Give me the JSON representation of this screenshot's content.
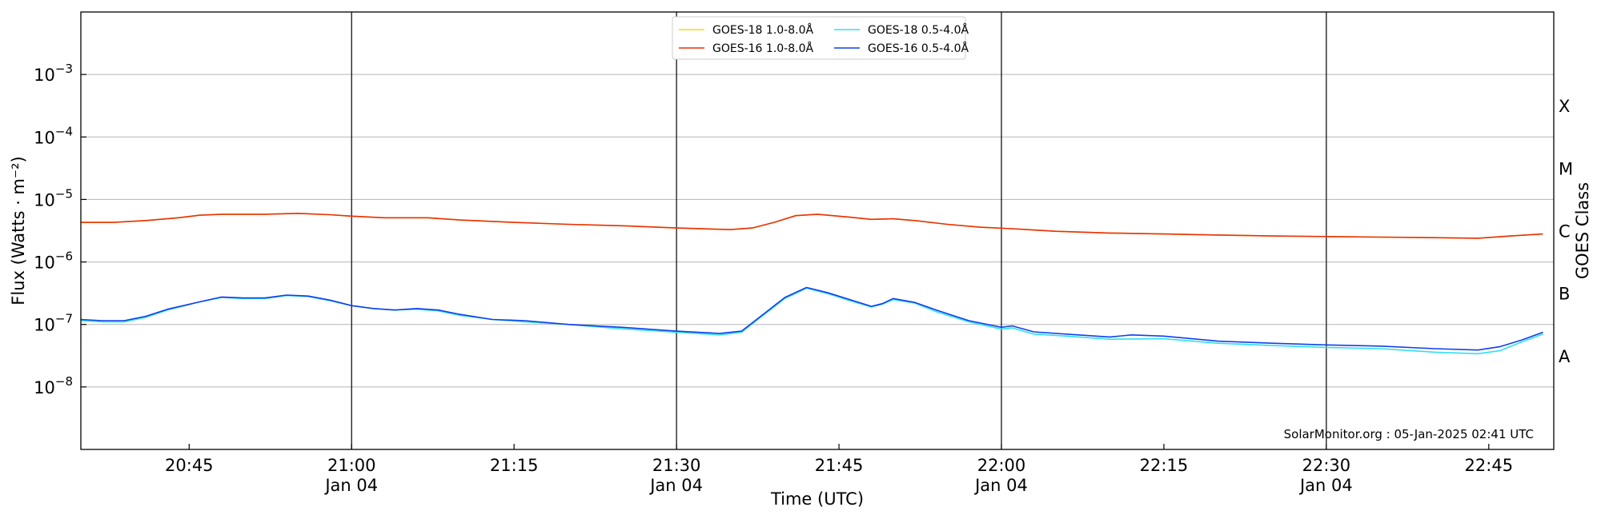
{
  "chart_data": {
    "type": "line",
    "title": "",
    "xlabel": "Time (UTC)",
    "ylabel": "Flux (Watts · m⁻²)",
    "y2label": "GOES Class",
    "yscale": "log",
    "ylim": [
      1e-09,
      0.01
    ],
    "xlim": [
      "2025-01-04 20:35",
      "2025-01-04 22:51"
    ],
    "grid": "horizontal at decades 1e-8 to 1e-3",
    "legend_position": "top-center",
    "credit": "SolarMonitor.org : 05-Jan-2025 02:41 UTC",
    "x_ticks": [
      {
        "time": "2025-01-04 20:45",
        "label": "20:45",
        "sublabel": ""
      },
      {
        "time": "2025-01-04 21:00",
        "label": "21:00",
        "sublabel": "Jan 04"
      },
      {
        "time": "2025-01-04 21:15",
        "label": "21:15",
        "sublabel": ""
      },
      {
        "time": "2025-01-04 21:30",
        "label": "21:30",
        "sublabel": "Jan 04"
      },
      {
        "time": "2025-01-04 21:45",
        "label": "21:45",
        "sublabel": ""
      },
      {
        "time": "2025-01-04 22:00",
        "label": "22:00",
        "sublabel": "Jan 04"
      },
      {
        "time": "2025-01-04 22:15",
        "label": "22:15",
        "sublabel": ""
      },
      {
        "time": "2025-01-04 22:30",
        "label": "22:30",
        "sublabel": "Jan 04"
      },
      {
        "time": "2025-01-04 22:45",
        "label": "22:45",
        "sublabel": ""
      }
    ],
    "vertical_lines": [
      "2025-01-04 21:00",
      "2025-01-04 21:30",
      "2025-01-04 22:00",
      "2025-01-04 22:30"
    ],
    "y_ticks": [
      {
        "value": 1e-08,
        "base": "10",
        "exp": "−8"
      },
      {
        "value": 1e-07,
        "base": "10",
        "exp": "−7"
      },
      {
        "value": 1e-06,
        "base": "10",
        "exp": "−6"
      },
      {
        "value": 1e-05,
        "base": "10",
        "exp": "−5"
      },
      {
        "value": 0.0001,
        "base": "10",
        "exp": "−4"
      },
      {
        "value": 0.001,
        "base": "10",
        "exp": "−3"
      }
    ],
    "goes_classes": [
      {
        "label": "A",
        "value": 3.16e-08
      },
      {
        "label": "B",
        "value": 3.16e-07
      },
      {
        "label": "C",
        "value": 3.16e-06
      },
      {
        "label": "M",
        "value": 3.16e-05
      },
      {
        "label": "X",
        "value": 0.000316
      }
    ],
    "legend": [
      {
        "label": "GOES-18 1.0-8.0Å",
        "color": "#FFD700"
      },
      {
        "label": "GOES-16 1.0-8.0Å",
        "color": "#E8300C"
      },
      {
        "label": "GOES-18 0.5-4.0Å",
        "color": "#2FE0F0"
      },
      {
        "label": "GOES-16 0.5-4.0Å",
        "color": "#0F3FF0"
      }
    ],
    "series": [
      {
        "name": "GOES-18 1.0-8.0Å",
        "color": "#FFD700",
        "points": [
          [
            "2025-01-04 20:35",
            4.3e-06
          ],
          [
            "2025-01-04 20:38",
            4.3e-06
          ],
          [
            "2025-01-04 20:41",
            4.6e-06
          ],
          [
            "2025-01-04 20:44",
            5.1e-06
          ],
          [
            "2025-01-04 20:46",
            5.6e-06
          ],
          [
            "2025-01-04 20:48",
            5.8e-06
          ],
          [
            "2025-01-04 20:52",
            5.8e-06
          ],
          [
            "2025-01-04 20:55",
            6e-06
          ],
          [
            "2025-01-04 20:58",
            5.7e-06
          ],
          [
            "2025-01-04 21:00",
            5.4e-06
          ],
          [
            "2025-01-04 21:03",
            5.1e-06
          ],
          [
            "2025-01-04 21:07",
            5.1e-06
          ],
          [
            "2025-01-04 21:10",
            4.7e-06
          ],
          [
            "2025-01-04 21:15",
            4.3e-06
          ],
          [
            "2025-01-04 21:20",
            4e-06
          ],
          [
            "2025-01-04 21:25",
            3.8e-06
          ],
          [
            "2025-01-04 21:30",
            3.5e-06
          ],
          [
            "2025-01-04 21:35",
            3.3e-06
          ],
          [
            "2025-01-04 21:37",
            3.5e-06
          ],
          [
            "2025-01-04 21:39",
            4.3e-06
          ],
          [
            "2025-01-04 21:41",
            5.5e-06
          ],
          [
            "2025-01-04 21:43",
            5.8e-06
          ],
          [
            "2025-01-04 21:46",
            5.2e-06
          ],
          [
            "2025-01-04 21:48",
            4.8e-06
          ],
          [
            "2025-01-04 21:50",
            4.9e-06
          ],
          [
            "2025-01-04 21:52",
            4.6e-06
          ],
          [
            "2025-01-04 21:55",
            4e-06
          ],
          [
            "2025-01-04 21:58",
            3.6e-06
          ],
          [
            "2025-01-04 22:01",
            3.4e-06
          ],
          [
            "2025-01-04 22:05",
            3.1e-06
          ],
          [
            "2025-01-04 22:10",
            2.9e-06
          ],
          [
            "2025-01-04 22:15",
            2.8e-06
          ],
          [
            "2025-01-04 22:20",
            2.7e-06
          ],
          [
            "2025-01-04 22:25",
            2.6e-06
          ],
          [
            "2025-01-04 22:30",
            2.55e-06
          ],
          [
            "2025-01-04 22:35",
            2.5e-06
          ],
          [
            "2025-01-04 22:40",
            2.45e-06
          ],
          [
            "2025-01-04 22:44",
            2.4e-06
          ],
          [
            "2025-01-04 22:47",
            2.6e-06
          ],
          [
            "2025-01-04 22:50",
            2.8e-06
          ]
        ]
      },
      {
        "name": "GOES-16 1.0-8.0Å",
        "color": "#E8300C",
        "points": [
          [
            "2025-01-04 20:35",
            4.3e-06
          ],
          [
            "2025-01-04 20:38",
            4.3e-06
          ],
          [
            "2025-01-04 20:41",
            4.6e-06
          ],
          [
            "2025-01-04 20:44",
            5.1e-06
          ],
          [
            "2025-01-04 20:46",
            5.6e-06
          ],
          [
            "2025-01-04 20:48",
            5.8e-06
          ],
          [
            "2025-01-04 20:52",
            5.8e-06
          ],
          [
            "2025-01-04 20:55",
            6e-06
          ],
          [
            "2025-01-04 20:58",
            5.7e-06
          ],
          [
            "2025-01-04 21:00",
            5.4e-06
          ],
          [
            "2025-01-04 21:03",
            5.1e-06
          ],
          [
            "2025-01-04 21:07",
            5.1e-06
          ],
          [
            "2025-01-04 21:10",
            4.7e-06
          ],
          [
            "2025-01-04 21:15",
            4.3e-06
          ],
          [
            "2025-01-04 21:20",
            4e-06
          ],
          [
            "2025-01-04 21:25",
            3.8e-06
          ],
          [
            "2025-01-04 21:30",
            3.5e-06
          ],
          [
            "2025-01-04 21:35",
            3.3e-06
          ],
          [
            "2025-01-04 21:37",
            3.5e-06
          ],
          [
            "2025-01-04 21:39",
            4.3e-06
          ],
          [
            "2025-01-04 21:41",
            5.5e-06
          ],
          [
            "2025-01-04 21:43",
            5.8e-06
          ],
          [
            "2025-01-04 21:46",
            5.2e-06
          ],
          [
            "2025-01-04 21:48",
            4.8e-06
          ],
          [
            "2025-01-04 21:50",
            4.9e-06
          ],
          [
            "2025-01-04 21:52",
            4.6e-06
          ],
          [
            "2025-01-04 21:55",
            4e-06
          ],
          [
            "2025-01-04 21:58",
            3.6e-06
          ],
          [
            "2025-01-04 22:01",
            3.4e-06
          ],
          [
            "2025-01-04 22:05",
            3.1e-06
          ],
          [
            "2025-01-04 22:10",
            2.9e-06
          ],
          [
            "2025-01-04 22:15",
            2.8e-06
          ],
          [
            "2025-01-04 22:20",
            2.7e-06
          ],
          [
            "2025-01-04 22:25",
            2.6e-06
          ],
          [
            "2025-01-04 22:30",
            2.55e-06
          ],
          [
            "2025-01-04 22:35",
            2.5e-06
          ],
          [
            "2025-01-04 22:40",
            2.45e-06
          ],
          [
            "2025-01-04 22:44",
            2.4e-06
          ],
          [
            "2025-01-04 22:47",
            2.6e-06
          ],
          [
            "2025-01-04 22:50",
            2.8e-06
          ]
        ]
      },
      {
        "name": "GOES-18 0.5-4.0Å",
        "color": "#2FE0F0",
        "points": [
          [
            "2025-01-04 20:35",
            1.15e-07
          ],
          [
            "2025-01-04 20:37",
            1.1e-07
          ],
          [
            "2025-01-04 20:39",
            1.1e-07
          ],
          [
            "2025-01-04 20:41",
            1.3e-07
          ],
          [
            "2025-01-04 20:43",
            1.7e-07
          ],
          [
            "2025-01-04 20:46",
            2.3e-07
          ],
          [
            "2025-01-04 20:48",
            2.7e-07
          ],
          [
            "2025-01-04 20:50",
            2.6e-07
          ],
          [
            "2025-01-04 20:52",
            2.6e-07
          ],
          [
            "2025-01-04 20:54",
            2.9e-07
          ],
          [
            "2025-01-04 20:56",
            2.8e-07
          ],
          [
            "2025-01-04 20:58",
            2.4e-07
          ],
          [
            "2025-01-04 21:00",
            2e-07
          ],
          [
            "2025-01-04 21:02",
            1.8e-07
          ],
          [
            "2025-01-04 21:04",
            1.7e-07
          ],
          [
            "2025-01-04 21:06",
            1.75e-07
          ],
          [
            "2025-01-04 21:08",
            1.65e-07
          ],
          [
            "2025-01-04 21:10",
            1.4e-07
          ],
          [
            "2025-01-04 21:13",
            1.2e-07
          ],
          [
            "2025-01-04 21:16",
            1.1e-07
          ],
          [
            "2025-01-04 21:20",
            1e-07
          ],
          [
            "2025-01-04 21:25",
            8.5e-08
          ],
          [
            "2025-01-04 21:30",
            7.5e-08
          ],
          [
            "2025-01-04 21:34",
            6.8e-08
          ],
          [
            "2025-01-04 21:36",
            7.5e-08
          ],
          [
            "2025-01-04 21:38",
            1.4e-07
          ],
          [
            "2025-01-04 21:40",
            2.6e-07
          ],
          [
            "2025-01-04 21:42",
            3.8e-07
          ],
          [
            "2025-01-04 21:44",
            3.1e-07
          ],
          [
            "2025-01-04 21:46",
            2.4e-07
          ],
          [
            "2025-01-04 21:48",
            1.9e-07
          ],
          [
            "2025-01-04 21:49",
            2.1e-07
          ],
          [
            "2025-01-04 21:50",
            2.5e-07
          ],
          [
            "2025-01-04 21:52",
            2.2e-07
          ],
          [
            "2025-01-04 21:54",
            1.6e-07
          ],
          [
            "2025-01-04 21:57",
            1.1e-07
          ],
          [
            "2025-01-04 22:00",
            8.4e-08
          ],
          [
            "2025-01-04 22:01",
            8.8e-08
          ],
          [
            "2025-01-04 22:03",
            7e-08
          ],
          [
            "2025-01-04 22:06",
            6.5e-08
          ],
          [
            "2025-01-04 22:10",
            5.8e-08
          ],
          [
            "2025-01-04 22:15",
            5.9e-08
          ],
          [
            "2025-01-04 22:20",
            5e-08
          ],
          [
            "2025-01-04 22:25",
            4.6e-08
          ],
          [
            "2025-01-04 22:30",
            4.3e-08
          ],
          [
            "2025-01-04 22:35",
            4.1e-08
          ],
          [
            "2025-01-04 22:40",
            3.6e-08
          ],
          [
            "2025-01-04 22:44",
            3.4e-08
          ],
          [
            "2025-01-04 22:46",
            3.8e-08
          ],
          [
            "2025-01-04 22:48",
            5.2e-08
          ],
          [
            "2025-01-04 22:50",
            7e-08
          ]
        ]
      },
      {
        "name": "GOES-16 0.5-4.0Å",
        "color": "#0F3FF0",
        "points": [
          [
            "2025-01-04 20:35",
            1.2e-07
          ],
          [
            "2025-01-04 20:37",
            1.15e-07
          ],
          [
            "2025-01-04 20:39",
            1.15e-07
          ],
          [
            "2025-01-04 20:41",
            1.35e-07
          ],
          [
            "2025-01-04 20:43",
            1.75e-07
          ],
          [
            "2025-01-04 20:46",
            2.3e-07
          ],
          [
            "2025-01-04 20:48",
            2.75e-07
          ],
          [
            "2025-01-04 20:50",
            2.65e-07
          ],
          [
            "2025-01-04 20:52",
            2.65e-07
          ],
          [
            "2025-01-04 20:54",
            2.95e-07
          ],
          [
            "2025-01-04 20:56",
            2.85e-07
          ],
          [
            "2025-01-04 20:58",
            2.45e-07
          ],
          [
            "2025-01-04 21:00",
            2e-07
          ],
          [
            "2025-01-04 21:02",
            1.8e-07
          ],
          [
            "2025-01-04 21:04",
            1.7e-07
          ],
          [
            "2025-01-04 21:06",
            1.8e-07
          ],
          [
            "2025-01-04 21:08",
            1.7e-07
          ],
          [
            "2025-01-04 21:10",
            1.45e-07
          ],
          [
            "2025-01-04 21:13",
            1.2e-07
          ],
          [
            "2025-01-04 21:16",
            1.15e-07
          ],
          [
            "2025-01-04 21:20",
            1e-07
          ],
          [
            "2025-01-04 21:25",
            9e-08
          ],
          [
            "2025-01-04 21:30",
            7.8e-08
          ],
          [
            "2025-01-04 21:34",
            7.2e-08
          ],
          [
            "2025-01-04 21:36",
            7.8e-08
          ],
          [
            "2025-01-04 21:38",
            1.45e-07
          ],
          [
            "2025-01-04 21:40",
            2.7e-07
          ],
          [
            "2025-01-04 21:42",
            3.9e-07
          ],
          [
            "2025-01-04 21:44",
            3.2e-07
          ],
          [
            "2025-01-04 21:46",
            2.5e-07
          ],
          [
            "2025-01-04 21:48",
            1.95e-07
          ],
          [
            "2025-01-04 21:49",
            2.15e-07
          ],
          [
            "2025-01-04 21:50",
            2.6e-07
          ],
          [
            "2025-01-04 21:52",
            2.25e-07
          ],
          [
            "2025-01-04 21:54",
            1.7e-07
          ],
          [
            "2025-01-04 21:57",
            1.15e-07
          ],
          [
            "2025-01-04 22:00",
            9e-08
          ],
          [
            "2025-01-04 22:01",
            9.5e-08
          ],
          [
            "2025-01-04 22:03",
            7.6e-08
          ],
          [
            "2025-01-04 22:06",
            7e-08
          ],
          [
            "2025-01-04 22:10",
            6.3e-08
          ],
          [
            "2025-01-04 22:12",
            6.8e-08
          ],
          [
            "2025-01-04 22:15",
            6.5e-08
          ],
          [
            "2025-01-04 22:20",
            5.4e-08
          ],
          [
            "2025-01-04 22:25",
            5e-08
          ],
          [
            "2025-01-04 22:30",
            4.7e-08
          ],
          [
            "2025-01-04 22:35",
            4.5e-08
          ],
          [
            "2025-01-04 22:40",
            4.1e-08
          ],
          [
            "2025-01-04 22:44",
            3.9e-08
          ],
          [
            "2025-01-04 22:46",
            4.4e-08
          ],
          [
            "2025-01-04 22:48",
            5.6e-08
          ],
          [
            "2025-01-04 22:50",
            7.5e-08
          ]
        ]
      }
    ]
  }
}
